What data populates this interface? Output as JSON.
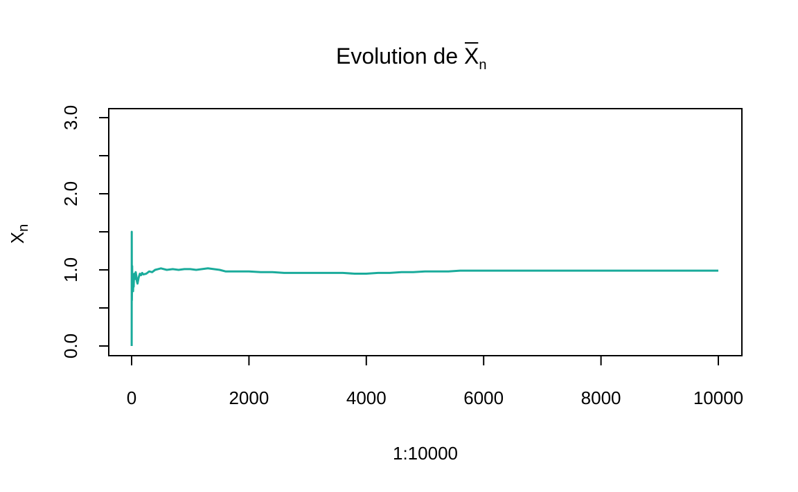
{
  "chart_data": {
    "type": "line",
    "title": {
      "base": "Evolution de ",
      "var": "X",
      "sub": "n"
    },
    "xlabel": "1:10000",
    "ylabel": {
      "var": "X",
      "sub": "n"
    },
    "xlim": [
      0,
      10000
    ],
    "ylim": [
      0,
      3
    ],
    "x_ticks": [
      0,
      2000,
      4000,
      6000,
      8000,
      10000
    ],
    "x_tick_labels": [
      "0",
      "2000",
      "4000",
      "6000",
      "8000",
      "10000"
    ],
    "y_ticks": [
      0,
      0.5,
      1.0,
      1.5,
      2.0,
      2.5,
      3.0
    ],
    "y_tick_labels": [
      "0.0",
      "",
      "1.0",
      "",
      "2.0",
      "",
      "3.0"
    ],
    "grid": false,
    "series": [
      {
        "color": "#1aab9b",
        "x": [
          1,
          2,
          3,
          5,
          8,
          10,
          13,
          16,
          20,
          25,
          30,
          35,
          40,
          50,
          60,
          70,
          80,
          90,
          100,
          120,
          140,
          160,
          180,
          200,
          250,
          300,
          350,
          400,
          450,
          500,
          600,
          700,
          800,
          900,
          1000,
          1100,
          1200,
          1300,
          1400,
          1500,
          1600,
          1700,
          1800,
          2000,
          2200,
          2400,
          2600,
          2800,
          3000,
          3200,
          3400,
          3600,
          3800,
          4000,
          4200,
          4400,
          4600,
          4800,
          5000,
          5200,
          5400,
          5600,
          5800,
          6000,
          6500,
          7000,
          7500,
          8000,
          8500,
          9000,
          9500,
          10000
        ],
        "y": [
          0,
          1.5,
          0.95,
          0.6,
          0.9,
          1.05,
          0.75,
          0.95,
          0.85,
          0.72,
          0.82,
          0.78,
          0.9,
          0.95,
          0.88,
          0.97,
          0.92,
          0.85,
          0.82,
          0.9,
          0.95,
          0.93,
          0.96,
          0.94,
          0.95,
          0.98,
          0.97,
          1.0,
          1.01,
          1.02,
          1.0,
          1.01,
          1.0,
          1.01,
          1.01,
          1.0,
          1.01,
          1.02,
          1.01,
          1.0,
          0.98,
          0.98,
          0.98,
          0.98,
          0.97,
          0.97,
          0.96,
          0.96,
          0.96,
          0.96,
          0.96,
          0.96,
          0.95,
          0.95,
          0.96,
          0.96,
          0.97,
          0.97,
          0.98,
          0.98,
          0.98,
          0.99,
          0.99,
          0.99,
          0.99,
          0.99,
          0.99,
          0.99,
          0.99,
          0.99,
          0.99,
          0.99
        ]
      }
    ]
  }
}
